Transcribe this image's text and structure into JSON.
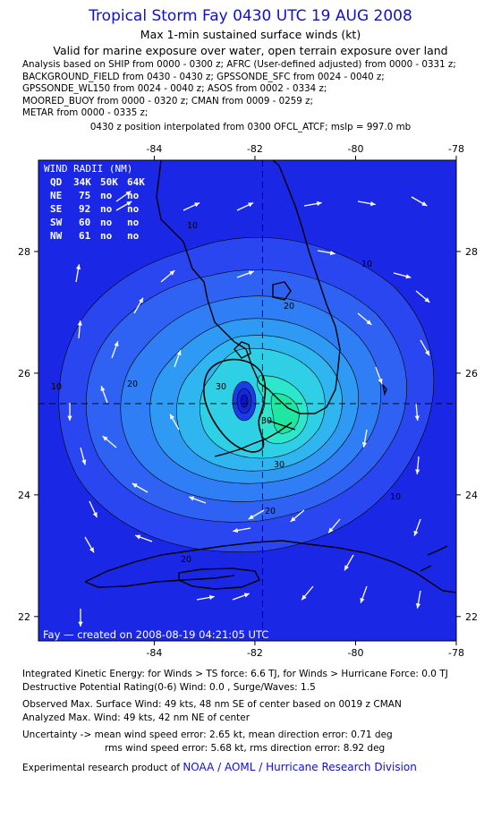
{
  "header": {
    "title": "Tropical Storm Fay 0430 UTC 19 AUG 2008",
    "subtitle1": "Max 1-min sustained surface winds (kt)",
    "subtitle2": "Valid for marine exposure over water, open terrain exposure over land",
    "analysis_lines": [
      "Analysis based on  SHIP from 0000 - 0300 z;  AFRC (User-defined adjusted) from 0000 - 0331 z;",
      "BACKGROUND_FIELD from 0430 - 0430 z;  GPSSONDE_SFC from 0024 - 0040 z;",
      "GPSSONDE_WL150 from 0024 - 0040 z;  ASOS from 0002 - 0334 z;",
      "MOORED_BUOY from 0000 - 0320 z;  CMAN from 0009 - 0259 z;",
      "METAR from 0000 - 0335 z;"
    ],
    "interp_line": "0430 z position interpolated from 0300 OFCL_ATCF; mslp = 997.0 mb"
  },
  "map": {
    "lon_labels": [
      "-84",
      "-82",
      "-80",
      "-78"
    ],
    "lon_values": [
      -84,
      -82,
      -80,
      -78
    ],
    "lat_labels": [
      "28",
      "26",
      "24",
      "22"
    ],
    "lat_values": [
      28,
      26,
      24,
      22
    ],
    "lon_range": [
      -86.3,
      -78.0
    ],
    "lat_range": [
      21.6,
      29.5
    ],
    "center": {
      "lon": -81.85,
      "lat": 25.5
    },
    "contour_labels": [
      "10",
      "10",
      "10",
      "10",
      "20",
      "20",
      "20",
      "20",
      "30",
      "30",
      "30"
    ],
    "colors": {
      "background": "#1a28e6",
      "levels": [
        "#2a46f0",
        "#2f62f3",
        "#2f7ef5",
        "#2f9af4",
        "#2fb6f0",
        "#2fd0e6",
        "#2de6cc",
        "#1fe6a0"
      ],
      "center_low": "#0a14c8",
      "land": "#000000",
      "arrow": "#ffffff",
      "title": "#1010d0"
    },
    "wind_radii": {
      "title": "WIND RADII (NM)",
      "header": [
        "QD",
        "34K",
        "50K",
        "64K"
      ],
      "rows": [
        [
          "NE",
          "75",
          "no",
          "no"
        ],
        [
          "SE",
          "92",
          "no",
          "no"
        ],
        [
          "SW",
          "60",
          "no",
          "no"
        ],
        [
          "NW",
          "61",
          "no",
          "no"
        ]
      ]
    },
    "created_text": "Fay — created on 2008-08-19 04:21:05 UTC"
  },
  "footer": {
    "ike": "Integrated Kinetic Energy:  for Winds > TS force: 6.6 TJ,  for Winds > Hurricane Force: 0.0 TJ",
    "dpr": "Destructive Potential Rating(0-6)   Wind: 0.0 , Surge/Waves: 1.5",
    "obs_max": "Observed Max. Surface Wind: 49 kts, 48 nm SE of center based on 0019 z CMAN",
    "analyzed_max": "Analyzed Max. Wind: 49 kts, 42 nm NE of center",
    "uncertainty1": "Uncertainty -> mean wind speed error: 2.65 kt,   mean direction error: 0.71 deg",
    "uncertainty2": "rms wind speed error: 5.68 kt,   rms direction error: 8.92 deg",
    "credit_prefix": "Experimental research product of",
    "credit_link": "NOAA / AOML / Hurricane Research Division"
  }
}
